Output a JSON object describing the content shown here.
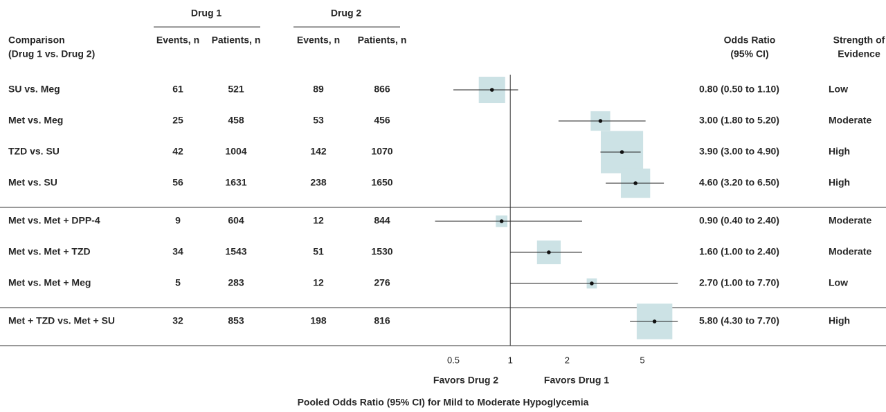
{
  "chart_data": {
    "type": "forest",
    "title": "Pooled Odds Ratio (95% CI) for Mild to Moderate Hypoglycemia",
    "favors_left": "Favors Drug 2",
    "favors_right": "Favors Drug 1",
    "group_headers": [
      "Drug 1",
      "Drug 2"
    ],
    "columns": [
      [
        "Comparison",
        "(Drug 1 vs. Drug 2)"
      ],
      [
        "Events, n"
      ],
      [
        "Patients, n"
      ],
      [
        "Events, n"
      ],
      [
        "Patients, n"
      ],
      [
        "Odds Ratio",
        "(95% CI)"
      ],
      [
        "Strength of",
        "Evidence"
      ]
    ],
    "scale": "log",
    "xlim": [
      0.35,
      8
    ],
    "xticks": [
      0.5,
      1,
      2,
      5
    ],
    "reference": 1,
    "box_color": "#cce2e5",
    "groups": [
      [
        {
          "comparison": "SU vs. Meg",
          "drug1_events": 61,
          "drug1_patients": 521,
          "drug2_events": 89,
          "drug2_patients": 866,
          "or": 0.8,
          "ci": [
            0.5,
            1.1
          ],
          "or_label": "0.80 (0.50 to 1.10)",
          "strength": "Low"
        },
        {
          "comparison": "Met vs. Meg",
          "drug1_events": 25,
          "drug1_patients": 458,
          "drug2_events": 53,
          "drug2_patients": 456,
          "or": 3.0,
          "ci": [
            1.8,
            5.2
          ],
          "or_label": "3.00 (1.80 to 5.20)",
          "strength": "Moderate"
        },
        {
          "comparison": "TZD vs. SU",
          "drug1_events": 42,
          "drug1_patients": 1004,
          "drug2_events": 142,
          "drug2_patients": 1070,
          "or": 3.9,
          "ci": [
            3.0,
            4.9
          ],
          "or_label": "3.90 (3.00 to 4.90)",
          "strength": "High"
        },
        {
          "comparison": "Met vs. SU",
          "drug1_events": 56,
          "drug1_patients": 1631,
          "drug2_events": 238,
          "drug2_patients": 1650,
          "or": 4.6,
          "ci": [
            3.2,
            6.5
          ],
          "or_label": "4.60 (3.20 to 6.50)",
          "strength": "High"
        }
      ],
      [
        {
          "comparison": "Met vs. Met + DPP-4",
          "drug1_events": 9,
          "drug1_patients": 604,
          "drug2_events": 12,
          "drug2_patients": 844,
          "or": 0.9,
          "ci": [
            0.4,
            2.4
          ],
          "or_label": "0.90 (0.40 to 2.40)",
          "strength": "Moderate"
        },
        {
          "comparison": "Met vs. Met + TZD",
          "drug1_events": 34,
          "drug1_patients": 1543,
          "drug2_events": 51,
          "drug2_patients": 1530,
          "or": 1.6,
          "ci": [
            1.0,
            2.4
          ],
          "or_label": "1.60 (1.00 to 2.40)",
          "strength": "Moderate"
        },
        {
          "comparison": "Met vs. Met + Meg",
          "drug1_events": 5,
          "drug1_patients": 283,
          "drug2_events": 12,
          "drug2_patients": 276,
          "or": 2.7,
          "ci": [
            1.0,
            7.7
          ],
          "or_label": "2.70 (1.00 to 7.70)",
          "strength": "Low"
        }
      ],
      [
        {
          "comparison": "Met + TZD vs. Met + SU",
          "drug1_events": 32,
          "drug1_patients": 853,
          "drug2_events": 198,
          "drug2_patients": 816,
          "or": 5.8,
          "ci": [
            4.3,
            7.7
          ],
          "or_label": "5.80 (4.30 to 7.70)",
          "strength": "High"
        }
      ]
    ]
  }
}
